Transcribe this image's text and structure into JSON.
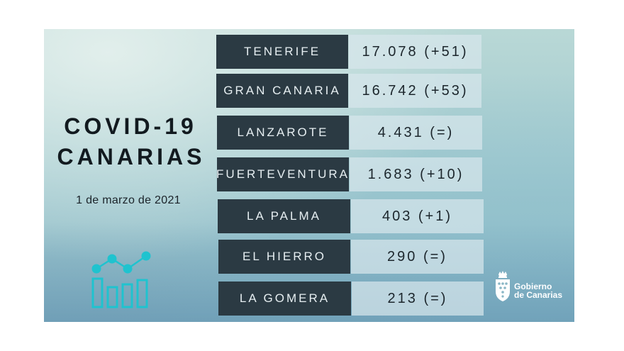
{
  "title": {
    "line1": "COVID-19",
    "line2": "CANARIAS"
  },
  "date": "1 de marzo de 2021",
  "icon": "chart-growth-icon",
  "colors": {
    "label_bg": "#2b3a43",
    "value_bg": "#d7e6ec",
    "icon": "#1fc3cf"
  },
  "islands": [
    {
      "name": "TENERIFE",
      "value": "17.078 (+51)"
    },
    {
      "name": "GRAN CANARIA",
      "value": "16.742 (+53)"
    },
    {
      "name": "LANZAROTE",
      "value": "4.431 (=)"
    },
    {
      "name": "FUERTEVENTURA",
      "value": "1.683 (+10)"
    },
    {
      "name": "LA PALMA",
      "value": "403 (+1)"
    },
    {
      "name": "EL HIERRO",
      "value": "290 (=)"
    },
    {
      "name": "LA GOMERA",
      "value": "213 (=)"
    }
  ],
  "logo": {
    "line1": "Gobierno",
    "line2": "de Canarias"
  }
}
